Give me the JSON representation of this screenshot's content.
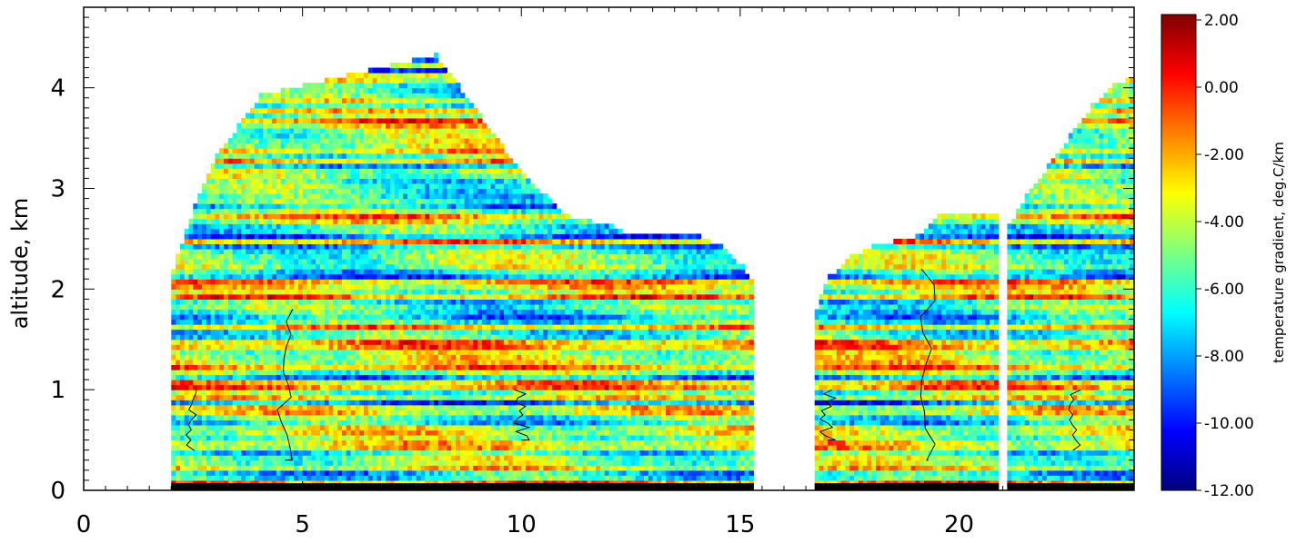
{
  "chart_data": {
    "type": "heatmap",
    "title": "",
    "xlabel": "",
    "ylabel": "altitude, km",
    "xlim": [
      0,
      24
    ],
    "ylim": [
      0,
      4.8
    ],
    "x_ticks": [
      0,
      5,
      10,
      15,
      20
    ],
    "y_ticks": [
      0,
      1,
      2,
      3,
      4
    ],
    "colorbar": {
      "label": "temperature gradient, deg.C/km",
      "min": -12,
      "max": 2,
      "ticks": [
        "2.00",
        "0.00",
        "-2.00",
        "-4.00",
        "-6.00",
        "-8.00",
        "-10.00",
        "-12.00"
      ],
      "colors": [
        "#00007f",
        "#0000ff",
        "#007fff",
        "#00ffff",
        "#7fff7f",
        "#ffff00",
        "#ff7f00",
        "#ff0000",
        "#7f0000"
      ]
    },
    "data_segments": [
      {
        "x_start": 2.0,
        "x_end": 15.3,
        "top_profile": [
          [
            2.0,
            2.2
          ],
          [
            2.5,
            2.8
          ],
          [
            3.0,
            3.3
          ],
          [
            3.5,
            3.6
          ],
          [
            4.0,
            3.9
          ],
          [
            5.0,
            4.0
          ],
          [
            6.0,
            4.1
          ],
          [
            7.0,
            4.2
          ],
          [
            8.0,
            4.3
          ],
          [
            8.5,
            4.0
          ],
          [
            9.0,
            3.7
          ],
          [
            9.5,
            3.4
          ],
          [
            10.0,
            3.1
          ],
          [
            10.5,
            2.9
          ],
          [
            11.0,
            2.7
          ],
          [
            12.0,
            2.6
          ],
          [
            12.5,
            2.5
          ],
          [
            14.0,
            2.5
          ],
          [
            14.5,
            2.4
          ],
          [
            15.0,
            2.2
          ],
          [
            15.3,
            2.0
          ]
        ]
      },
      {
        "x_start": 16.7,
        "x_end": 20.9,
        "top_profile": [
          [
            16.7,
            1.8
          ],
          [
            17.0,
            2.1
          ],
          [
            17.5,
            2.3
          ],
          [
            18.0,
            2.4
          ],
          [
            19.0,
            2.5
          ],
          [
            19.5,
            2.7
          ],
          [
            20.0,
            2.7
          ],
          [
            20.9,
            2.7
          ]
        ]
      },
      {
        "x_start": 21.1,
        "x_end": 24.0,
        "top_profile": [
          [
            21.1,
            2.6
          ],
          [
            21.5,
            2.9
          ],
          [
            22.0,
            3.2
          ],
          [
            22.5,
            3.5
          ],
          [
            23.0,
            3.8
          ],
          [
            23.5,
            4.0
          ],
          [
            24.0,
            4.1
          ]
        ]
      }
    ],
    "grid": false,
    "legend": "colorbar-right"
  }
}
